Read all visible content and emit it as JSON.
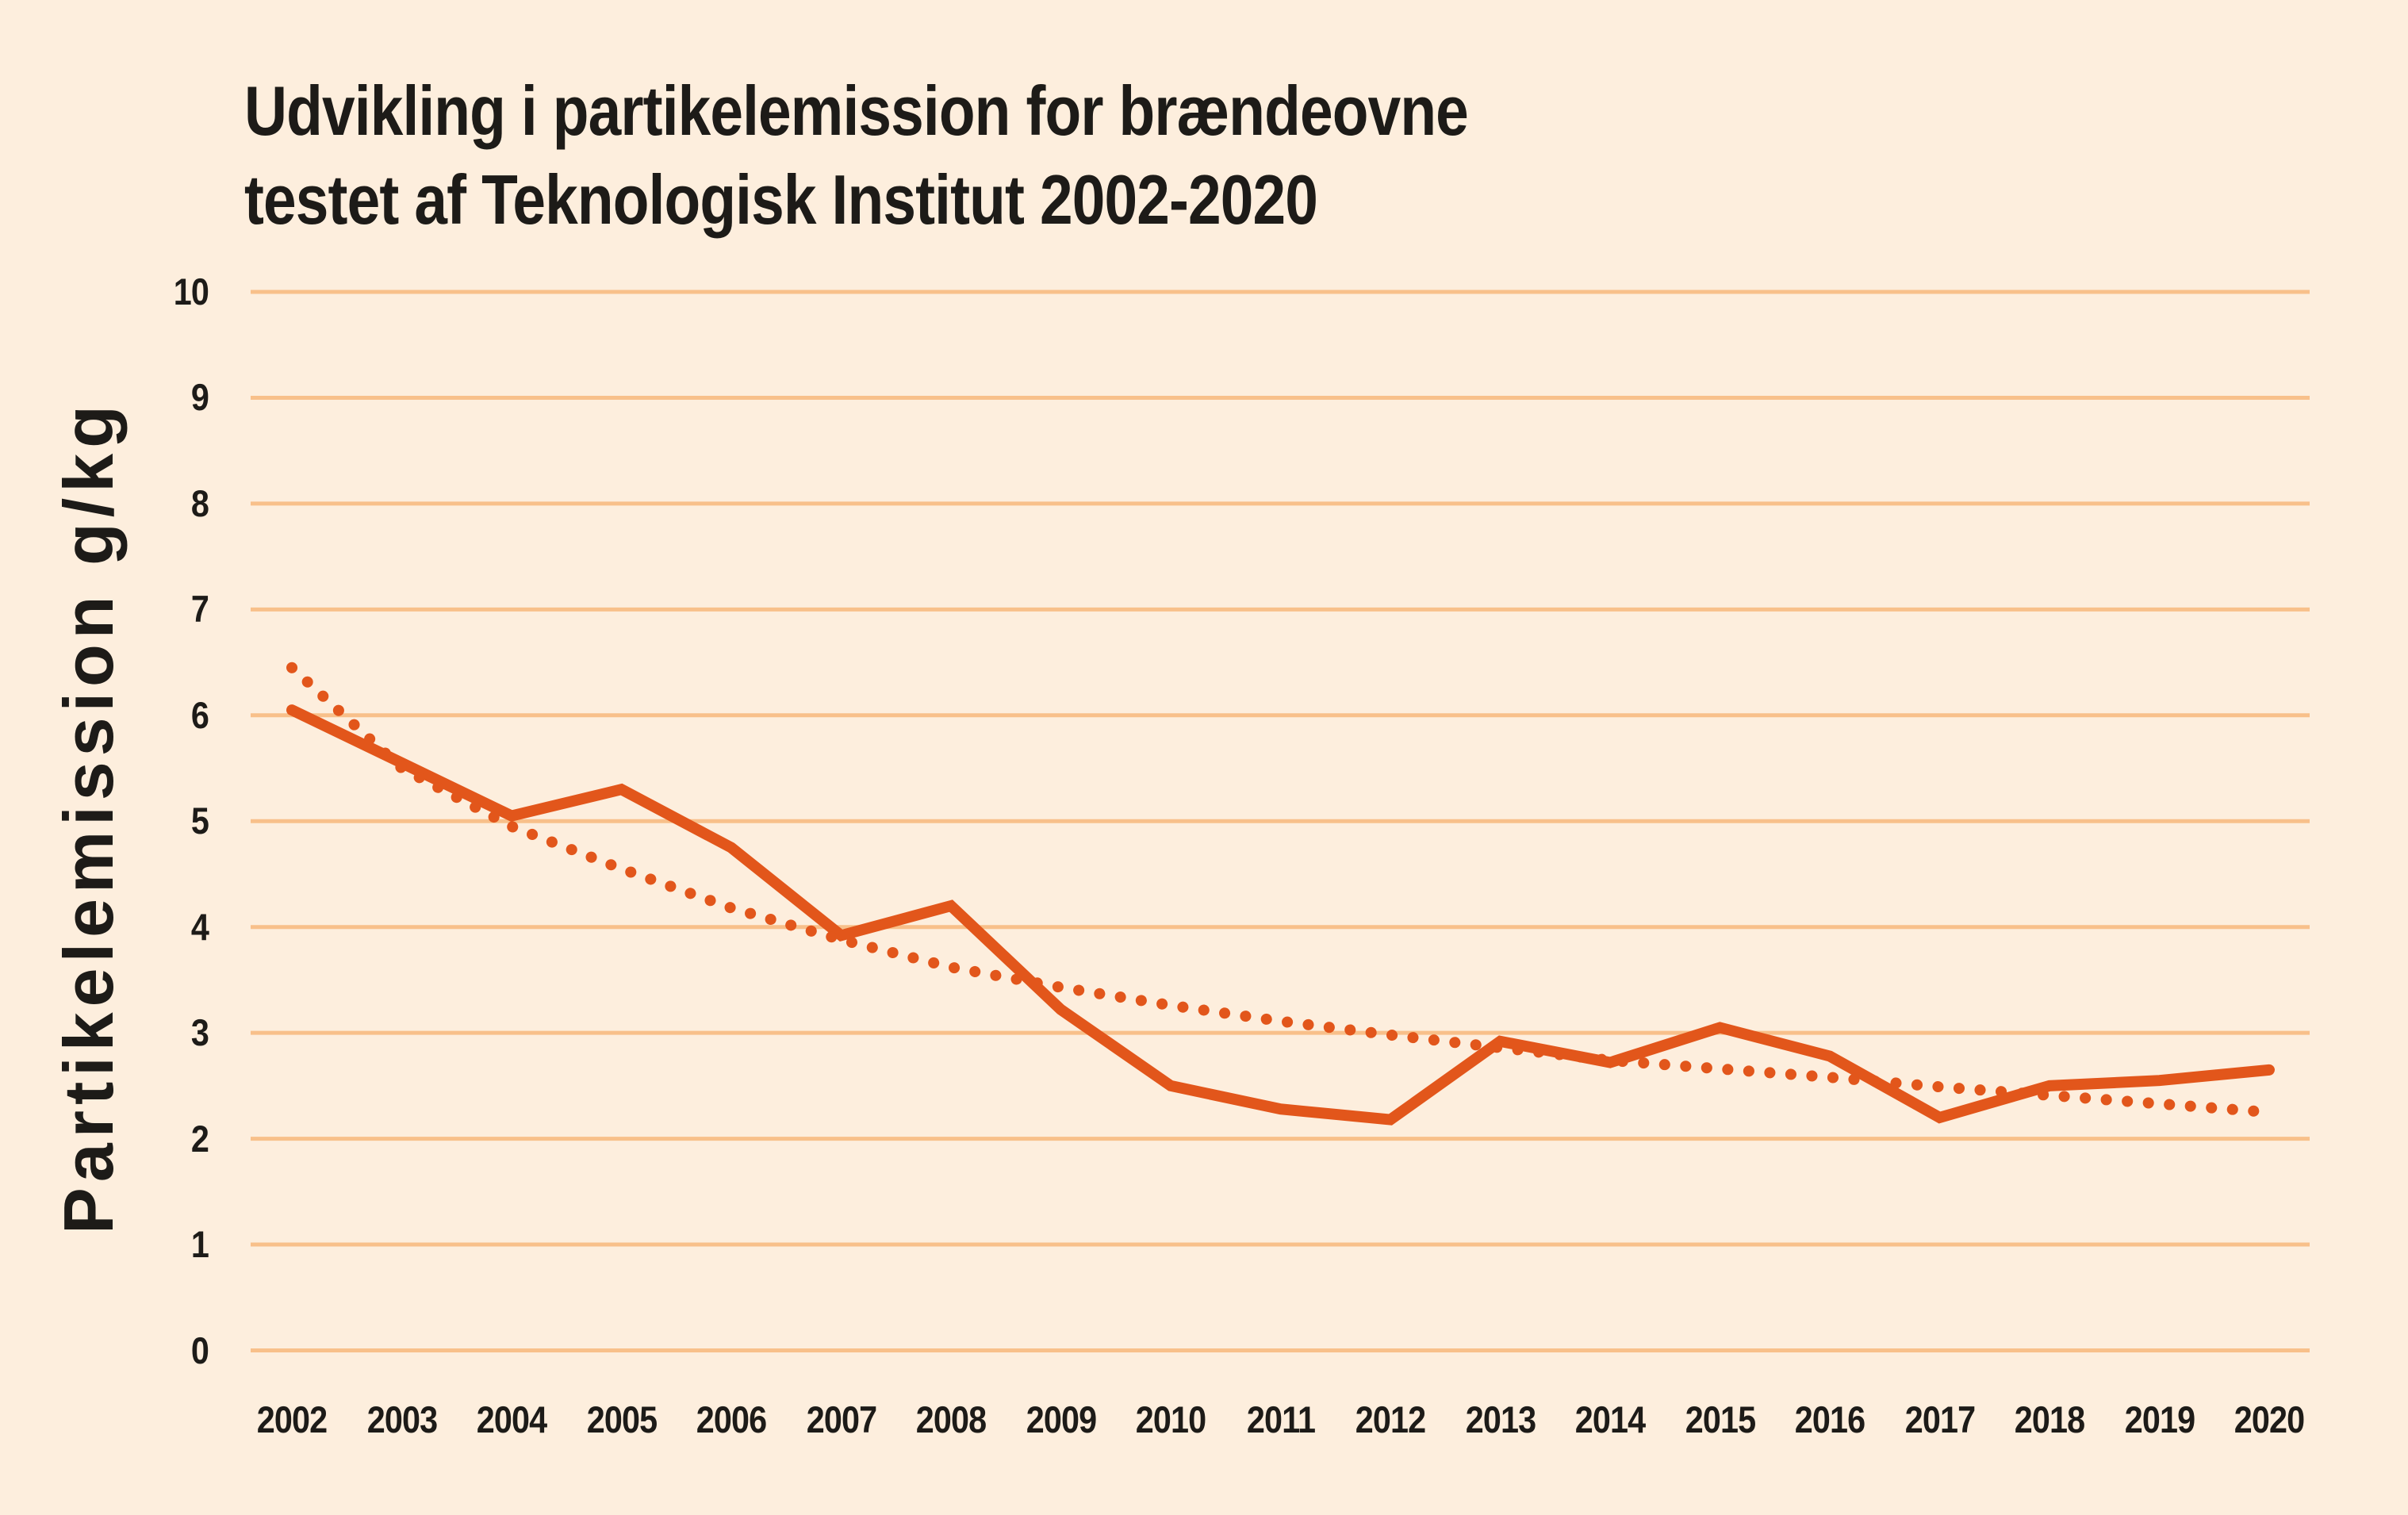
{
  "page": {
    "background_color": "#fdeedd",
    "text_color": "#1d1b18"
  },
  "title": {
    "line1": "Udvikling i partikelemission for brændeovne",
    "line2": "testet af Teknologisk Institut 2002-2020"
  },
  "chart_data": {
    "type": "line",
    "title": "Udvikling i partikelemission for brændeovne testet af Teknologisk Institut 2002-2020",
    "xlabel": "",
    "ylabel": "Partikelemission g/kg",
    "x": [
      2002,
      2003,
      2004,
      2005,
      2006,
      2007,
      2008,
      2009,
      2010,
      2011,
      2012,
      2013,
      2014,
      2015,
      2016,
      2017,
      2018,
      2019,
      2020
    ],
    "series": [
      {
        "name": "solid-emission-line",
        "style": "solid",
        "color": "#e2561b",
        "values": [
          6.05,
          5.55,
          5.05,
          5.3,
          4.75,
          3.92,
          4.2,
          3.22,
          2.5,
          2.28,
          2.18,
          2.92,
          2.72,
          3.05,
          2.78,
          2.2,
          2.5,
          2.55,
          2.65
        ]
      },
      {
        "name": "dotted-trendline",
        "style": "dotted",
        "color": "#e2561b",
        "values": [
          6.45,
          5.5,
          4.95,
          4.55,
          4.18,
          3.88,
          3.62,
          3.43,
          3.26,
          3.11,
          2.98,
          2.86,
          2.74,
          2.66,
          2.58,
          2.49,
          2.41,
          2.33,
          2.25
        ]
      }
    ],
    "ylim": [
      0,
      10
    ],
    "yticks": [
      0,
      1,
      2,
      3,
      4,
      5,
      6,
      7,
      8,
      9,
      10
    ],
    "grid": "horizontal",
    "gridline_color": "#f8c08a",
    "legend": "none"
  }
}
